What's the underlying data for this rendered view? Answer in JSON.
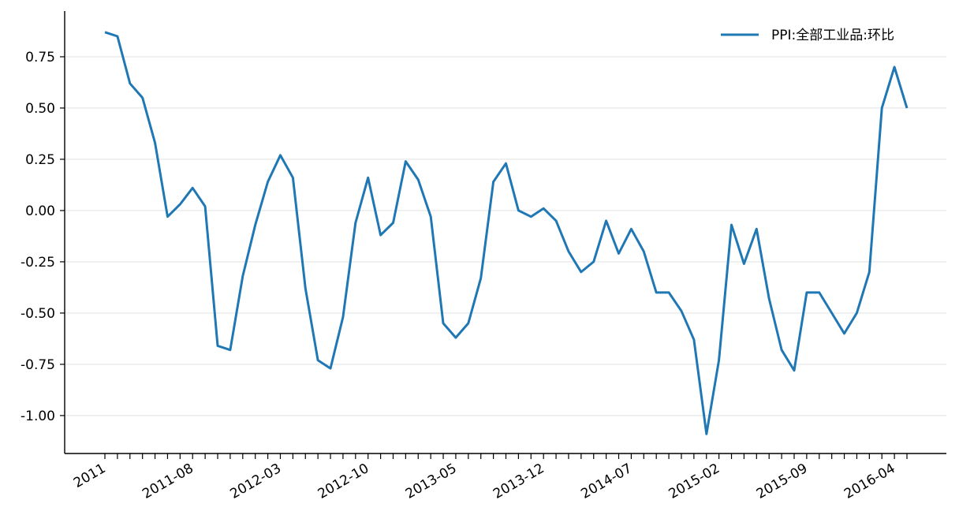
{
  "chart_data": {
    "type": "line",
    "categories": [
      "2011",
      null,
      null,
      null,
      null,
      null,
      null,
      "2011-08",
      null,
      null,
      null,
      null,
      null,
      null,
      "2012-03",
      null,
      null,
      null,
      null,
      null,
      null,
      "2012-10",
      null,
      null,
      null,
      null,
      null,
      null,
      "2013-05",
      null,
      null,
      null,
      null,
      null,
      null,
      "2013-12",
      null,
      null,
      null,
      null,
      null,
      null,
      "2014-07",
      null,
      null,
      null,
      null,
      null,
      null,
      "2015-02",
      null,
      null,
      null,
      null,
      null,
      null,
      "2015-09",
      null,
      null,
      null,
      null,
      null,
      null,
      "2016-04",
      null
    ],
    "series": [
      {
        "name": "PPI:全部工业品:环比",
        "color": "#1f77b4",
        "values": [
          0.87,
          0.85,
          0.62,
          0.55,
          0.33,
          -0.03,
          0.03,
          0.11,
          0.02,
          -0.66,
          -0.68,
          -0.32,
          -0.07,
          0.14,
          0.27,
          0.16,
          -0.38,
          -0.73,
          -0.77,
          -0.52,
          -0.06,
          0.16,
          -0.12,
          -0.06,
          0.24,
          0.15,
          -0.03,
          -0.55,
          -0.62,
          -0.55,
          -0.33,
          0.14,
          0.23,
          0.0,
          -0.03,
          0.01,
          -0.05,
          -0.2,
          -0.3,
          -0.25,
          -0.05,
          -0.21,
          -0.09,
          -0.2,
          -0.4,
          -0.4,
          -0.49,
          -0.63,
          -1.09,
          -0.73,
          -0.07,
          -0.26,
          -0.09,
          -0.43,
          -0.68,
          -0.78,
          -0.4,
          -0.4,
          -0.5,
          -0.6,
          -0.5,
          -0.3,
          0.5,
          0.7,
          0.5
        ]
      }
    ],
    "ylim": [
      -1.185,
      0.973
    ],
    "yticks": [
      {
        "value": -1,
        "label": "-1.00"
      },
      {
        "value": -0.75,
        "label": "-0.75"
      },
      {
        "value": -0.5,
        "label": "-0.50"
      },
      {
        "value": -0.25,
        "label": "-0.25"
      },
      {
        "value": 0,
        "label": "0.00"
      },
      {
        "value": 0.25,
        "label": "0.25"
      },
      {
        "value": 0.5,
        "label": "0.50"
      },
      {
        "value": 0.75,
        "label": "0.75"
      }
    ],
    "grid": true,
    "legend": "upper right"
  }
}
